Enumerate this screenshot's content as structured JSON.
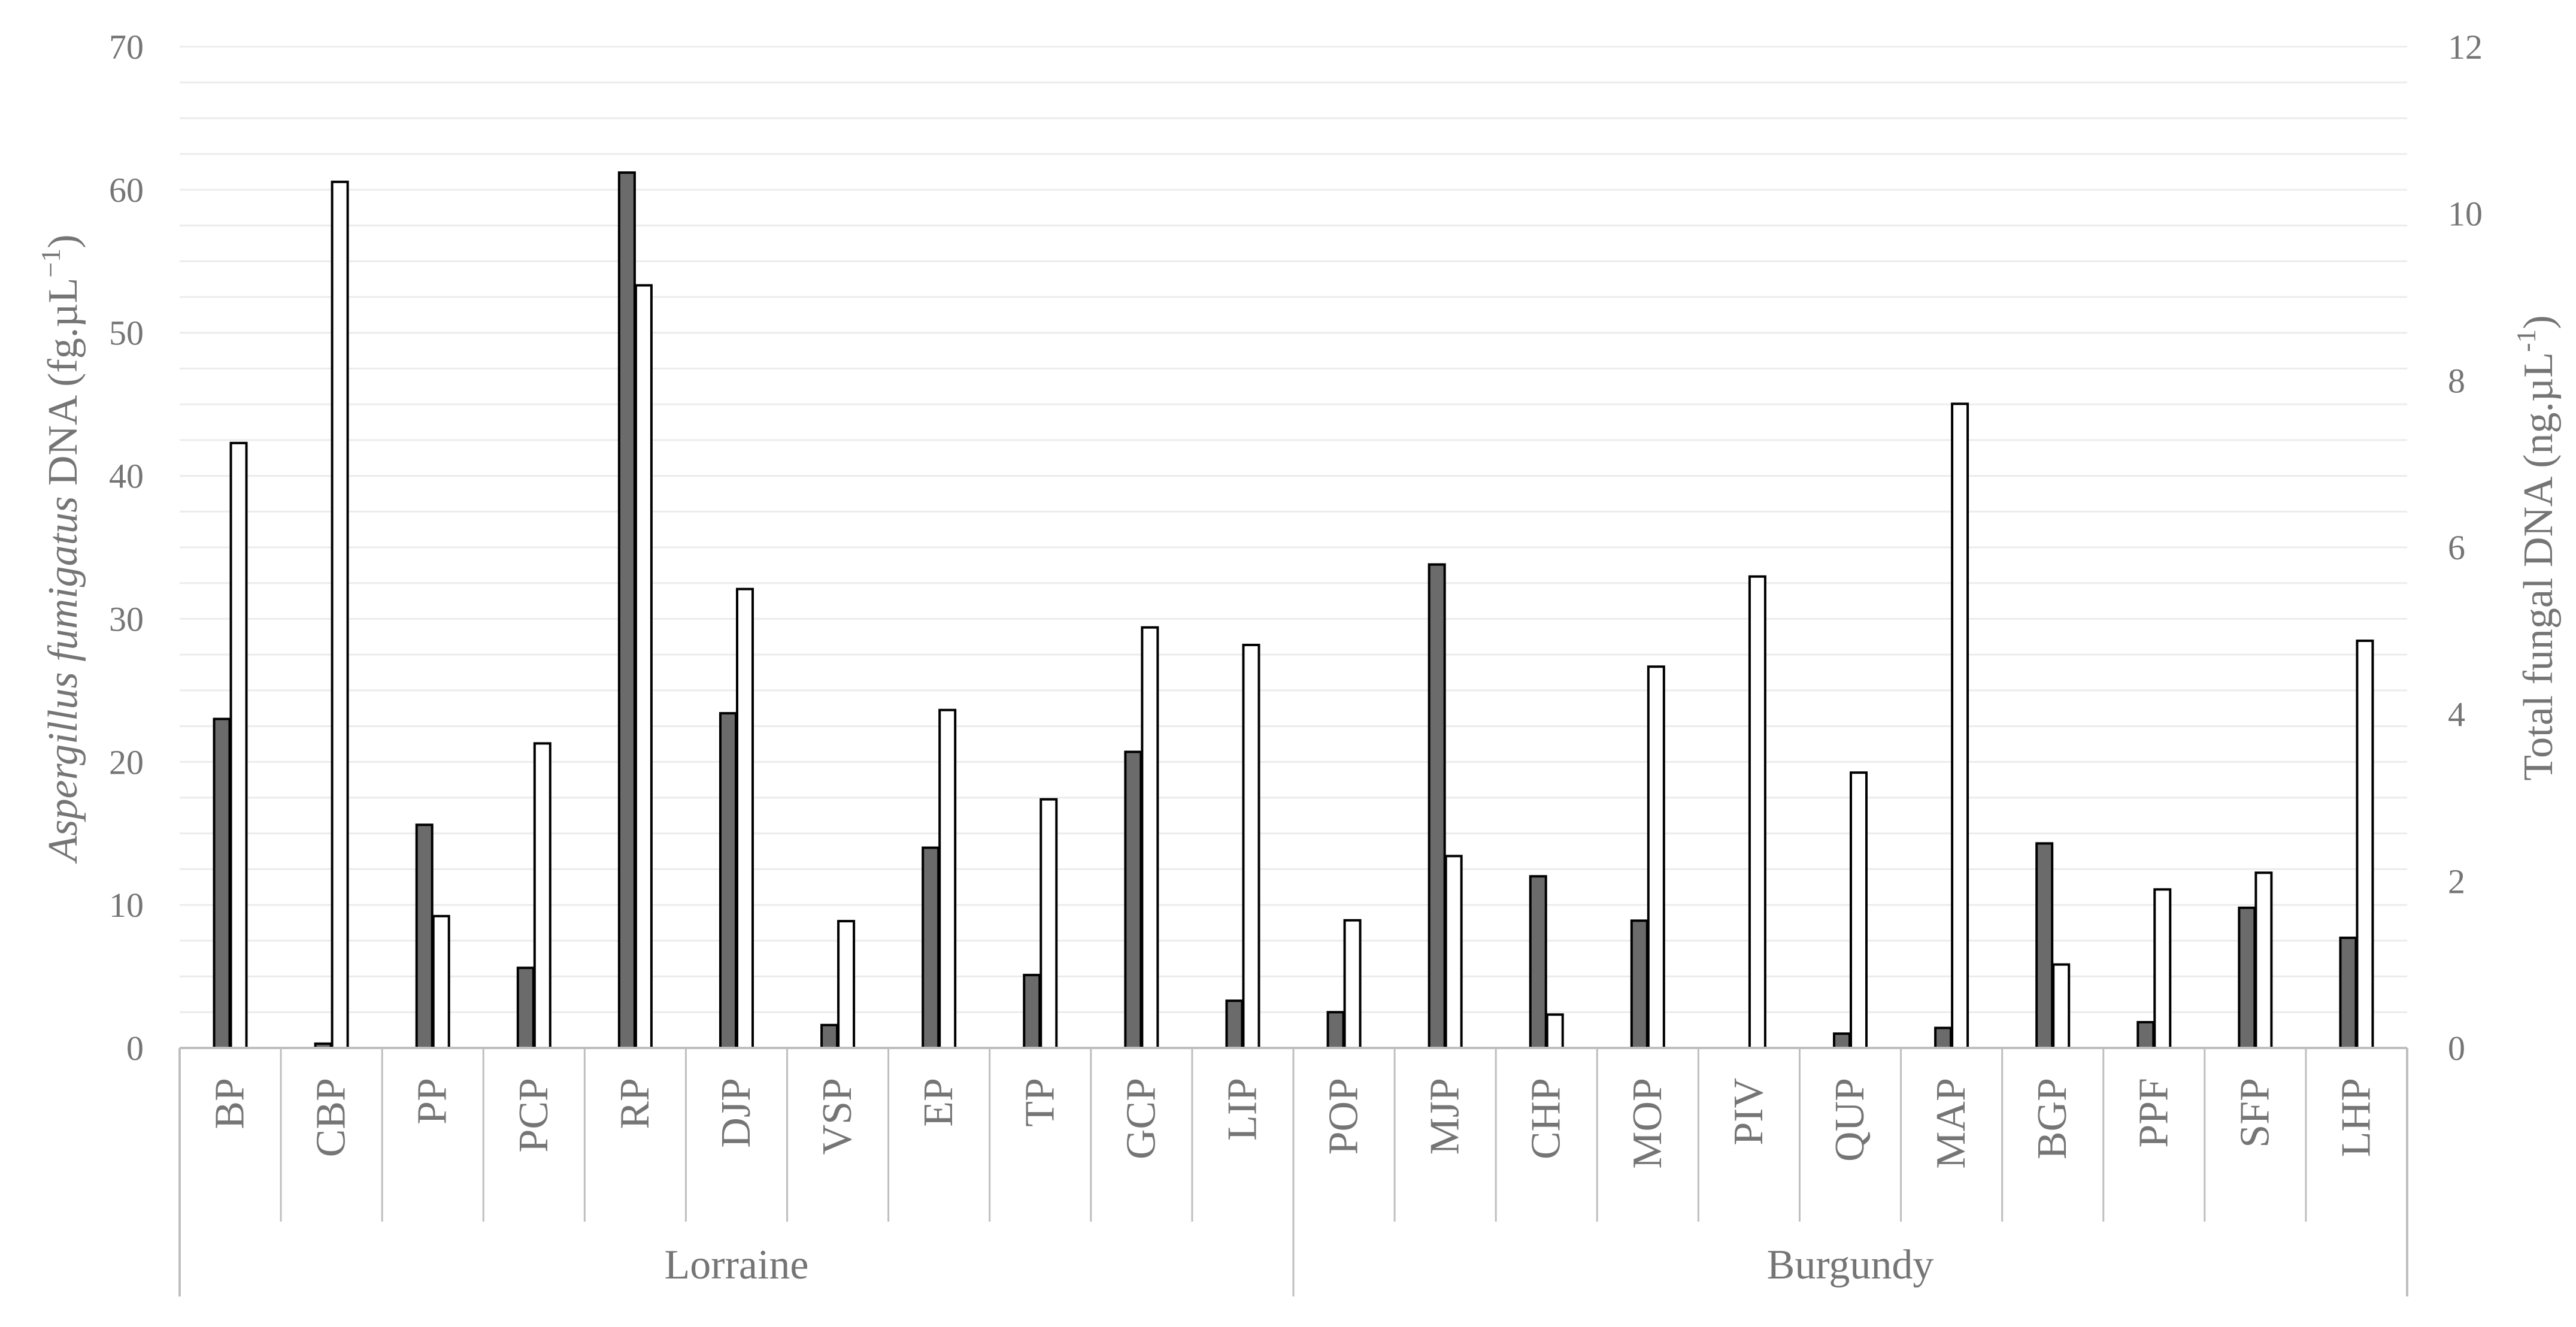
{
  "chart_data": {
    "type": "bar",
    "categories": [
      "BP",
      "CBP",
      "PP",
      "PCP",
      "RP",
      "DJP",
      "VSP",
      "EP",
      "TP",
      "GCP",
      "LIP",
      "POP",
      "MJP",
      "CHP",
      "MOP",
      "PIV",
      "QUP",
      "MAP",
      "BGP",
      "PPF",
      "SFP",
      "LHP"
    ],
    "groups": [
      {
        "label": "Lorraine",
        "start": 0,
        "end": 10
      },
      {
        "label": "Burgundy",
        "start": 11,
        "end": 21
      }
    ],
    "series": [
      {
        "axis": "left",
        "color": "#6b6b6b",
        "values": [
          23.0,
          0.3,
          15.6,
          5.6,
          61.2,
          23.4,
          1.6,
          14.0,
          5.1,
          20.7,
          3.3,
          2.5,
          33.8,
          12.0,
          8.9,
          0,
          1.0,
          1.4,
          14.3,
          1.8,
          9.8,
          7.7
        ]
      },
      {
        "axis": "right",
        "color": "#ffffff",
        "values": [
          7.25,
          10.38,
          1.58,
          3.65,
          9.14,
          5.5,
          1.52,
          4.05,
          2.98,
          5.04,
          4.83,
          1.53,
          2.3,
          0.4,
          4.57,
          5.65,
          3.3,
          7.72,
          1.0,
          1.9,
          2.1,
          4.88
        ]
      }
    ],
    "y_left": {
      "label_italic": "Aspergillus fumigatus",
      "label_rest": " DNA (fg.µL",
      "label_sup": "−1",
      "label_end": ")",
      "ylim": [
        0,
        70
      ],
      "ticks": [
        0,
        10,
        20,
        30,
        40,
        50,
        60,
        70
      ]
    },
    "y_right": {
      "label_main": "Total fungal DNA (ng.µL",
      "label_sup": "-1",
      "label_end": ")",
      "ylim": [
        0,
        12
      ],
      "ticks": [
        0,
        2,
        4,
        6,
        8,
        10,
        12
      ]
    },
    "grid": true,
    "legend": "none"
  }
}
